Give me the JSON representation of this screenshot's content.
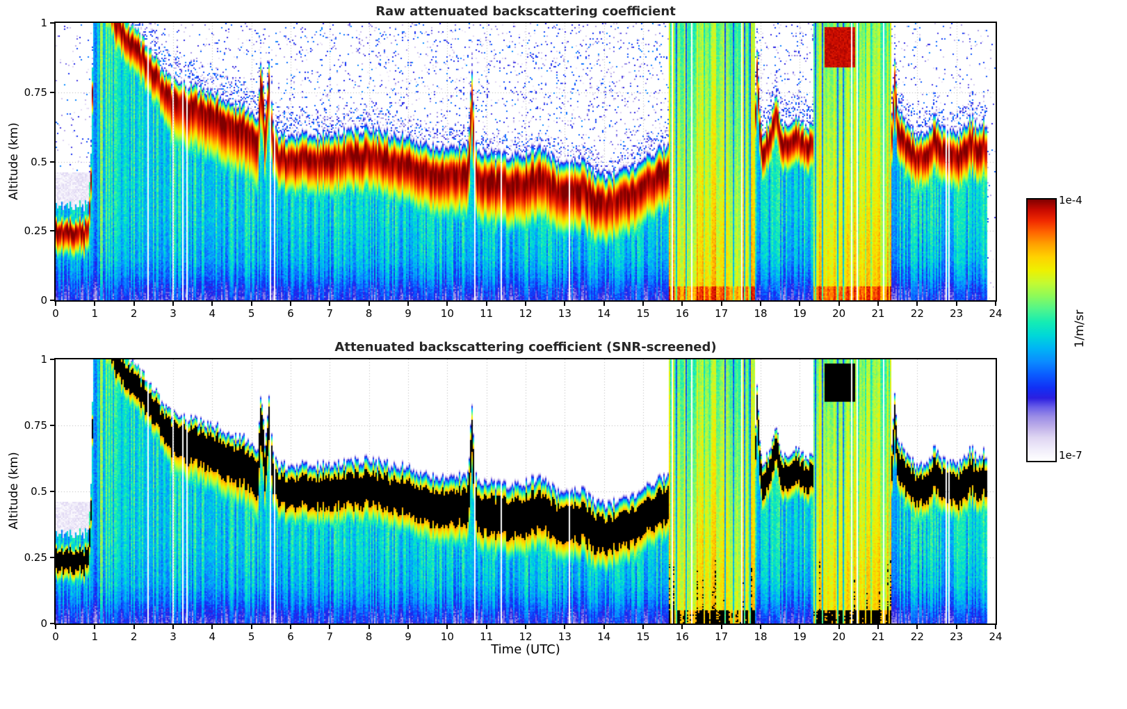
{
  "figure": {
    "background": "#ffffff",
    "panel1": {
      "title": "Raw attenuated backscattering coefficient"
    },
    "panel2": {
      "title": "Attenuated backscattering coefficient (SNR-screened)"
    },
    "x_axis": {
      "label": "Time (UTC)"
    },
    "y_axis": {
      "label": "Altitude (km)"
    },
    "colorbar": {
      "max_label": "1e-4",
      "min_label": "1e-7",
      "units_label": "1/m/sr"
    }
  },
  "chart_data": {
    "type": "heatmap",
    "panels": [
      {
        "title": "Raw attenuated backscattering coefficient",
        "mode": "raw"
      },
      {
        "title": "Attenuated backscattering coefficient (SNR-screened)",
        "mode": "screened"
      }
    ],
    "x": {
      "label": "Time (UTC)",
      "min": 0,
      "max": 24,
      "ticks": [
        0,
        1,
        2,
        3,
        4,
        5,
        6,
        7,
        8,
        9,
        10,
        11,
        12,
        13,
        14,
        15,
        16,
        17,
        18,
        19,
        20,
        21,
        22,
        23,
        24
      ],
      "tick_labels": [
        "0",
        "1",
        "2",
        "3",
        "4",
        "5",
        "6",
        "7",
        "8",
        "9",
        "10",
        "11",
        "12",
        "13",
        "14",
        "15",
        "16",
        "17",
        "18",
        "19",
        "20",
        "21",
        "22",
        "23",
        "24"
      ]
    },
    "y": {
      "label": "Altitude (km)",
      "min": 0,
      "max": 1,
      "ticks": [
        0,
        0.25,
        0.5,
        0.75,
        1
      ],
      "tick_labels": [
        "0",
        "0.25",
        "0.5",
        "0.75",
        "1"
      ]
    },
    "z": {
      "label": "1/m/sr",
      "scale": "log",
      "min": 1e-07,
      "max": 0.0001,
      "min_label": "1e-7",
      "max_label": "1e-4"
    },
    "colormap": {
      "stops": [
        [
          0.0,
          "#ffffff"
        ],
        [
          0.045,
          "#f0ecfa"
        ],
        [
          0.09,
          "#ded5f2"
        ],
        [
          0.13,
          "#beafe9"
        ],
        [
          0.17,
          "#9a8ce6"
        ],
        [
          0.205,
          "#6a5fe8"
        ],
        [
          0.24,
          "#2b1fe0"
        ],
        [
          0.28,
          "#1130f5"
        ],
        [
          0.33,
          "#0a5cff"
        ],
        [
          0.38,
          "#0a8cff"
        ],
        [
          0.43,
          "#00b4f5"
        ],
        [
          0.48,
          "#00d8d8"
        ],
        [
          0.53,
          "#14ecb4"
        ],
        [
          0.58,
          "#50f58c"
        ],
        [
          0.63,
          "#8cfa5a"
        ],
        [
          0.68,
          "#c3fa32"
        ],
        [
          0.73,
          "#eef000"
        ],
        [
          0.78,
          "#ffd200"
        ],
        [
          0.83,
          "#ffa000"
        ],
        [
          0.875,
          "#ff6400"
        ],
        [
          0.92,
          "#f02800"
        ],
        [
          0.96,
          "#c80a00"
        ],
        [
          1.0,
          "#800000"
        ]
      ]
    },
    "field_model": {
      "grid": {
        "nt": 676,
        "nz": 200
      },
      "data_end_hour": 23.8,
      "gap_col_frac": 0.028,
      "screened_black_above_log10": -4.5,
      "layer_top_km": [
        [
          0,
          0.34
        ],
        [
          0.85,
          0.34
        ],
        [
          0.92,
          0.6
        ],
        [
          0.97,
          1.18
        ],
        [
          1.4,
          1.14
        ],
        [
          1.55,
          1.06
        ],
        [
          1.75,
          1.02
        ],
        [
          2,
          0.98
        ],
        [
          2.3,
          0.93
        ],
        [
          2.6,
          0.86
        ],
        [
          2.8,
          0.81
        ],
        [
          3,
          0.79
        ],
        [
          3.3,
          0.77
        ],
        [
          3.6,
          0.76
        ],
        [
          4,
          0.74
        ],
        [
          4.4,
          0.71
        ],
        [
          4.8,
          0.69
        ],
        [
          5,
          0.66
        ],
        [
          5.15,
          0.62
        ],
        [
          5.25,
          0.88
        ],
        [
          5.35,
          0.65
        ],
        [
          5.45,
          0.86
        ],
        [
          5.55,
          0.62
        ],
        [
          5.7,
          0.58
        ],
        [
          6,
          0.57
        ],
        [
          6.5,
          0.58
        ],
        [
          7,
          0.57
        ],
        [
          7.5,
          0.59
        ],
        [
          8,
          0.59
        ],
        [
          8.5,
          0.57
        ],
        [
          9,
          0.56
        ],
        [
          9.4,
          0.53
        ],
        [
          9.8,
          0.51
        ],
        [
          10.2,
          0.52
        ],
        [
          10.55,
          0.52
        ],
        [
          10.62,
          0.82
        ],
        [
          10.72,
          0.52
        ],
        [
          11,
          0.49
        ],
        [
          11.5,
          0.48
        ],
        [
          12,
          0.49
        ],
        [
          12.4,
          0.51
        ],
        [
          12.7,
          0.47
        ],
        [
          13,
          0.45
        ],
        [
          13.4,
          0.47
        ],
        [
          13.7,
          0.43
        ],
        [
          14,
          0.41
        ],
        [
          14.4,
          0.43
        ],
        [
          14.8,
          0.46
        ],
        [
          15.2,
          0.5
        ],
        [
          15.6,
          0.53
        ],
        [
          15.65,
          0.55
        ],
        [
          17.86,
          0.6
        ],
        [
          17.9,
          0.95
        ],
        [
          17.97,
          0.7
        ],
        [
          18.05,
          0.6
        ],
        [
          18.2,
          0.64
        ],
        [
          18.4,
          0.73
        ],
        [
          18.55,
          0.62
        ],
        [
          18.75,
          0.63
        ],
        [
          18.95,
          0.66
        ],
        [
          19.15,
          0.61
        ],
        [
          19.35,
          0.63
        ],
        [
          21.35,
          0.64
        ],
        [
          21.42,
          0.88
        ],
        [
          21.5,
          0.68
        ],
        [
          21.7,
          0.62
        ],
        [
          22,
          0.58
        ],
        [
          22.3,
          0.59
        ],
        [
          22.45,
          0.66
        ],
        [
          22.6,
          0.6
        ],
        [
          23,
          0.58
        ],
        [
          23.2,
          0.6
        ],
        [
          23.4,
          0.64
        ],
        [
          23.55,
          0.59
        ],
        [
          23.7,
          0.63
        ],
        [
          23.8,
          0.61
        ]
      ],
      "band": {
        "peak_log10": -4.0,
        "width_km": [
          [
            0,
            0.07
          ],
          [
            0.9,
            0.07
          ],
          [
            1.6,
            0.08
          ],
          [
            3,
            0.09
          ],
          [
            5,
            0.1
          ],
          [
            6,
            0.11
          ],
          [
            8,
            0.12
          ],
          [
            10,
            0.13
          ],
          [
            12,
            0.14
          ],
          [
            14,
            0.13
          ],
          [
            15.6,
            0.12
          ],
          [
            18,
            0.09
          ],
          [
            19.3,
            0.09
          ],
          [
            21.4,
            0.1
          ],
          [
            23,
            0.11
          ],
          [
            24,
            0.11
          ]
        ],
        "center_offset_km": [
          [
            0,
            -0.09
          ],
          [
            0.9,
            -0.09
          ],
          [
            1.2,
            -0.06
          ],
          [
            24,
            -0.06
          ]
        ],
        "lower_tail_factor": [
          [
            0,
            1.8
          ],
          [
            2.7,
            1.8
          ],
          [
            3,
            2.6
          ],
          [
            5.2,
            2.6
          ],
          [
            5.6,
            1.7
          ],
          [
            24,
            1.7
          ]
        ]
      },
      "surface_profile": [
        [
          0,
          -6.25
        ],
        [
          0.04,
          -6.1
        ],
        [
          0.08,
          -5.9
        ],
        [
          0.15,
          -5.7
        ],
        [
          0.3,
          -5.58
        ],
        [
          1,
          -5.5
        ]
      ],
      "rain_intervals": [
        [
          15.65,
          17.85
        ],
        [
          19.35,
          21.35
        ]
      ],
      "rain": {
        "base_log10_min": -5.05,
        "base_log10_max": -4.45,
        "cyan_col_frac": 0.1,
        "cyan_log10": -5.6,
        "z_gradient": -0.45,
        "bottom_boost": 0.35,
        "white_col_frac": 0.035
      },
      "cloud_blob": {
        "t_start": 19.65,
        "t_end": 20.42,
        "z_bottom_km": 0.84,
        "z_top_km": 0.985,
        "log10": -4.12
      }
    }
  }
}
